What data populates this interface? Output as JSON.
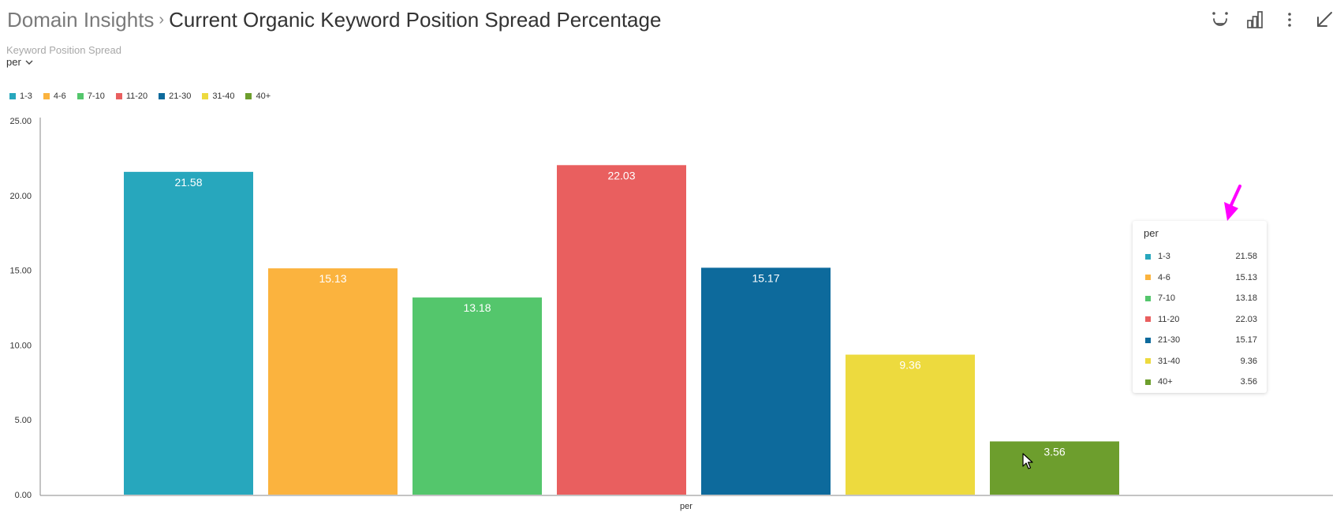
{
  "header": {
    "breadcrumb_root": "Domain Insights",
    "separator": "›",
    "title": "Current Organic Keyword Position Spread Percentage"
  },
  "toolbar": {
    "icons": [
      "ai-sparkle-icon",
      "bar-chart-icon",
      "more-vertical-icon",
      "collapse-arrow-icon"
    ]
  },
  "subtitle": "Keyword Position Spread",
  "dropdown": {
    "selected": "per"
  },
  "colors": {
    "c1": "#27a7bd",
    "c2": "#fbb33e",
    "c3": "#54c66c",
    "c4": "#e95f5f",
    "c5": "#0d6a9c",
    "c6": "#edda3e",
    "c7": "#6d9e2d"
  },
  "chart_data": {
    "type": "bar",
    "xlabel": "per",
    "ylabel": "",
    "ylim": [
      0,
      25
    ],
    "yticks": [
      "0.00",
      "5.00",
      "10.00",
      "15.00",
      "20.00",
      "25.00"
    ],
    "grid": false,
    "legend_position": "top-left",
    "categories": [
      "per"
    ],
    "series": [
      {
        "name": "1-3",
        "value": 21.58,
        "label": "21.58",
        "color": "#27a7bd"
      },
      {
        "name": "4-6",
        "value": 15.13,
        "label": "15.13",
        "color": "#fbb33e"
      },
      {
        "name": "7-10",
        "value": 13.18,
        "label": "13.18",
        "color": "#54c66c"
      },
      {
        "name": "11-20",
        "value": 22.03,
        "label": "22.03",
        "color": "#e95f5f"
      },
      {
        "name": "21-30",
        "value": 15.17,
        "label": "15.17",
        "color": "#0d6a9c"
      },
      {
        "name": "31-40",
        "value": 9.36,
        "label": "9.36",
        "color": "#edda3e"
      },
      {
        "name": "40+",
        "value": 3.56,
        "label": "3.56",
        "color": "#6d9e2d"
      }
    ]
  },
  "tooltip": {
    "title": "per",
    "rows": [
      {
        "label": "1-3",
        "value": "21.58",
        "color": "#27a7bd"
      },
      {
        "label": "4-6",
        "value": "15.13",
        "color": "#fbb33e"
      },
      {
        "label": "7-10",
        "value": "13.18",
        "color": "#54c66c"
      },
      {
        "label": "11-20",
        "value": "22.03",
        "color": "#e95f5f"
      },
      {
        "label": "21-30",
        "value": "15.17",
        "color": "#0d6a9c"
      },
      {
        "label": "31-40",
        "value": "9.36",
        "color": "#edda3e"
      },
      {
        "label": "40+",
        "value": "3.56",
        "color": "#6d9e2d"
      }
    ]
  }
}
